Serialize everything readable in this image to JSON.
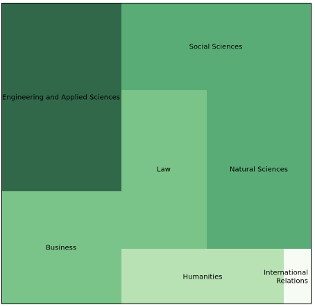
{
  "chart_data": {
    "type": "treemap",
    "title": "",
    "tiles": [
      {
        "label": "Engineering and Applied Sciences",
        "color": "#31684a"
      },
      {
        "label": "Social Sciences",
        "color": "#5aac76"
      },
      {
        "label": "Law",
        "color": "#7bc489"
      },
      {
        "label": "Natural Sciences",
        "color": "#5aac76"
      },
      {
        "label": "Business",
        "color": "#7bc489"
      },
      {
        "label": "Humanities",
        "color": "#b8e2b4"
      },
      {
        "label": "International Relations",
        "label_lines": [
          "International",
          "Relations"
        ],
        "color": "#f6fcf4"
      }
    ]
  }
}
